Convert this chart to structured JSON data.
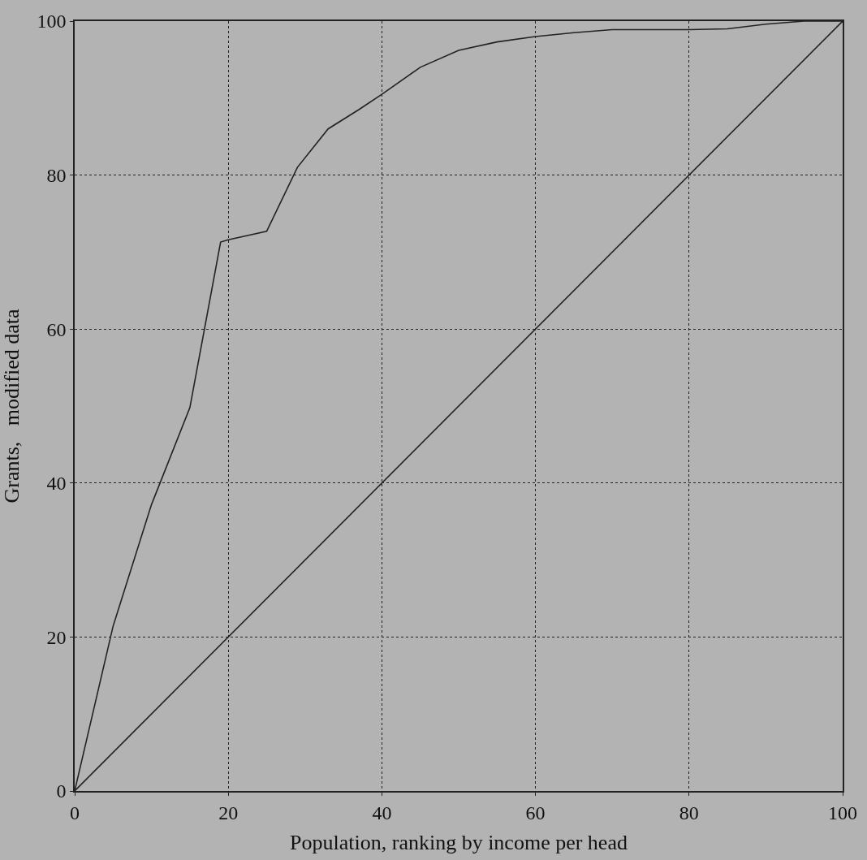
{
  "chart_data": {
    "type": "line",
    "xlabel": "Population, ranking by income per head",
    "ylabel": "Grants,   modified data",
    "xlim": [
      0,
      100
    ],
    "ylim": [
      0,
      100
    ],
    "xticks": [
      0,
      20,
      40,
      60,
      80,
      100
    ],
    "yticks": [
      0,
      20,
      40,
      60,
      80,
      100
    ],
    "grid": true,
    "marker": "none",
    "line_style": "solid",
    "series": [
      {
        "color": "#222222",
        "x": [
          0,
          5,
          10,
          15,
          19,
          20,
          25,
          29,
          33,
          37,
          40,
          45,
          50,
          55,
          60,
          65,
          70,
          80,
          85,
          90,
          95,
          100
        ],
        "values": [
          0,
          21.4,
          37.2,
          49.8,
          71.3,
          71.6,
          72.7,
          81,
          86,
          88.5,
          90.5,
          94,
          96.2,
          97.3,
          98,
          98.5,
          98.9,
          98.9,
          99,
          99.6,
          100,
          100
        ]
      },
      {
        "color": "#222222",
        "x": [
          0,
          100
        ],
        "values": [
          0,
          100
        ]
      }
    ]
  }
}
